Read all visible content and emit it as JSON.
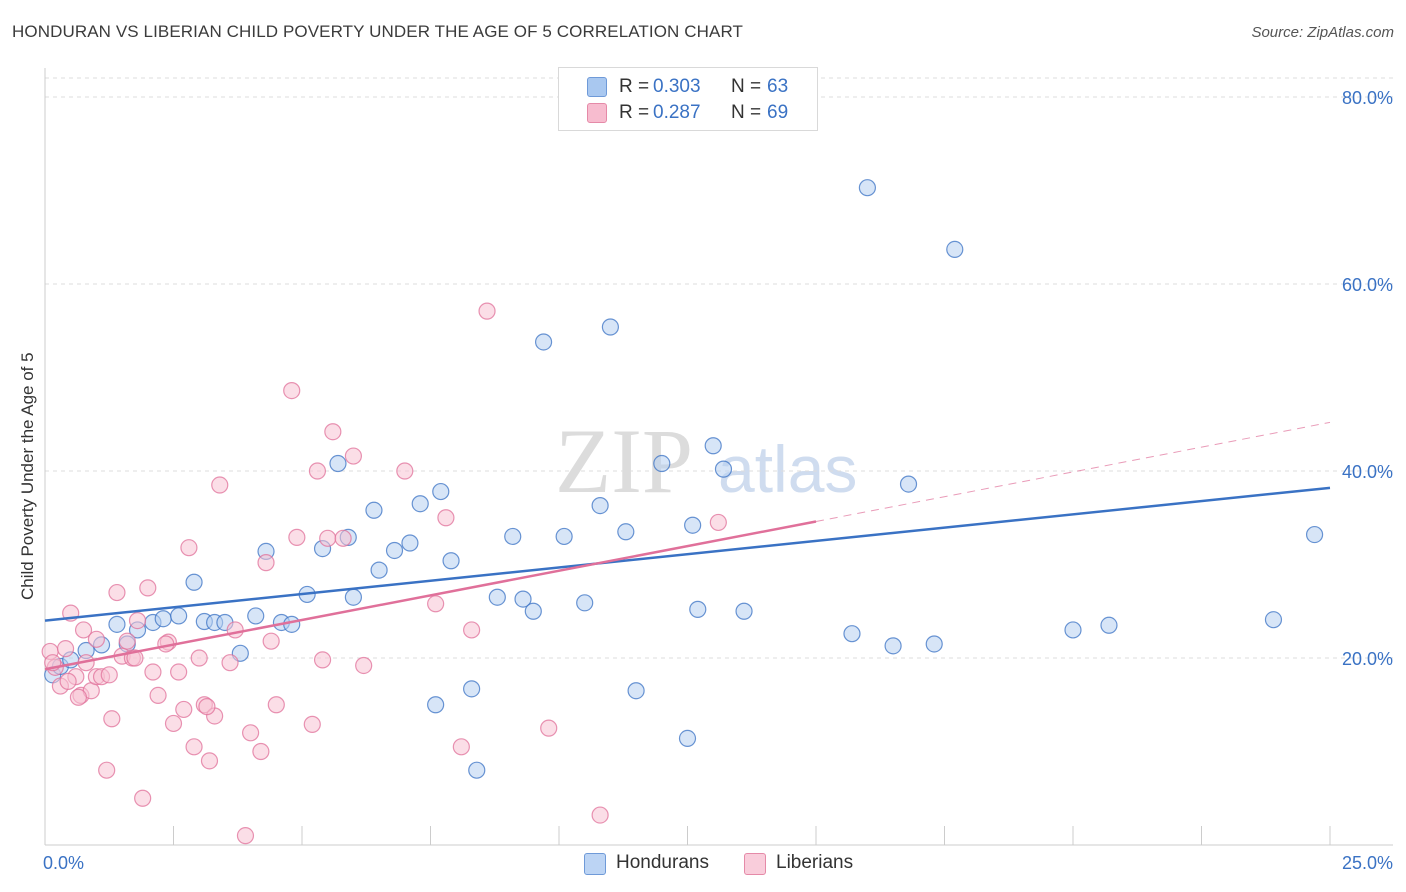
{
  "title": "HONDURAN VS LIBERIAN CHILD POVERTY UNDER THE AGE OF 5 CORRELATION CHART",
  "source": "Source: ZipAtlas.com",
  "watermark": {
    "zip": "ZIP",
    "atlas": "atlas"
  },
  "legend": {
    "rows": [
      {
        "r_label": "R =",
        "r_value": "0.303",
        "n_label": "N =",
        "n_value": "63",
        "color": "#a9c8f0",
        "border": "#6f9ad8"
      },
      {
        "r_label": "R =",
        "r_value": "0.287",
        "n_label": "N =",
        "n_value": "69",
        "color": "#f7bccf",
        "border": "#e58aa8"
      }
    ]
  },
  "bottom_legend": [
    {
      "label": "Hondurans",
      "color": "#bcd4f4",
      "border": "#6f9ad8"
    },
    {
      "label": "Liberians",
      "color": "#f9cddb",
      "border": "#e58aa8"
    }
  ],
  "chart_data": {
    "type": "scatter",
    "title": "HONDURAN VS LIBERIAN CHILD POVERTY UNDER THE AGE OF 5 CORRELATION CHART",
    "xlabel": "",
    "ylabel": "Child Poverty Under the Age of 5",
    "xlim": [
      0,
      25
    ],
    "ylim": [
      0,
      80
    ],
    "x_tick_labels": [
      "0.0%",
      "25.0%"
    ],
    "y_tick_labels": [
      "20.0%",
      "40.0%",
      "60.0%",
      "80.0%"
    ],
    "y_ticks": [
      20,
      40,
      60,
      80
    ],
    "x_minor_ticks": [
      2.5,
      5,
      7.5,
      10,
      12.5,
      15,
      17.5,
      20,
      22.5,
      25
    ],
    "grid": true,
    "series": [
      {
        "name": "Hondurans",
        "color": "#3a72c4",
        "fill": "#b7d0f1",
        "points": [
          [
            0.15,
            18.2
          ],
          [
            0.3,
            19.1
          ],
          [
            0.5,
            19.8
          ],
          [
            0.8,
            20.8
          ],
          [
            1.1,
            21.4
          ],
          [
            1.4,
            23.6
          ],
          [
            1.6,
            21.5
          ],
          [
            1.8,
            23.0
          ],
          [
            2.1,
            23.8
          ],
          [
            2.3,
            24.2
          ],
          [
            2.6,
            24.5
          ],
          [
            2.9,
            28.1
          ],
          [
            3.1,
            23.9
          ],
          [
            3.3,
            23.8
          ],
          [
            3.5,
            23.8
          ],
          [
            3.8,
            20.5
          ],
          [
            4.1,
            24.5
          ],
          [
            4.3,
            31.4
          ],
          [
            4.6,
            23.8
          ],
          [
            4.8,
            23.6
          ],
          [
            5.1,
            26.8
          ],
          [
            5.4,
            31.7
          ],
          [
            5.7,
            40.8
          ],
          [
            5.9,
            32.9
          ],
          [
            6.0,
            26.5
          ],
          [
            6.4,
            35.8
          ],
          [
            6.5,
            29.4
          ],
          [
            6.8,
            31.5
          ],
          [
            7.1,
            32.3
          ],
          [
            7.3,
            36.5
          ],
          [
            7.6,
            15.0
          ],
          [
            7.7,
            37.8
          ],
          [
            7.9,
            30.4
          ],
          [
            8.3,
            16.7
          ],
          [
            8.4,
            8.0
          ],
          [
            8.8,
            26.5
          ],
          [
            9.1,
            33.0
          ],
          [
            9.3,
            26.3
          ],
          [
            9.5,
            25.0
          ],
          [
            9.7,
            53.8
          ],
          [
            10.1,
            33.0
          ],
          [
            10.5,
            25.9
          ],
          [
            10.8,
            36.3
          ],
          [
            11.0,
            55.4
          ],
          [
            11.3,
            33.5
          ],
          [
            11.5,
            16.5
          ],
          [
            12.0,
            40.8
          ],
          [
            12.5,
            11.4
          ],
          [
            12.6,
            34.2
          ],
          [
            12.7,
            25.2
          ],
          [
            13.0,
            42.7
          ],
          [
            13.2,
            40.2
          ],
          [
            13.6,
            25.0
          ],
          [
            15.7,
            22.6
          ],
          [
            16.0,
            70.3
          ],
          [
            16.5,
            21.3
          ],
          [
            16.8,
            38.6
          ],
          [
            17.3,
            21.5
          ],
          [
            17.7,
            63.7
          ],
          [
            20.0,
            23.0
          ],
          [
            20.7,
            23.5
          ],
          [
            23.9,
            24.1
          ],
          [
            24.7,
            33.2
          ]
        ]
      },
      {
        "name": "Liberians",
        "color": "#e0709a",
        "fill": "#f7c3d4",
        "points": [
          [
            0.1,
            20.7
          ],
          [
            0.2,
            19.0
          ],
          [
            0.3,
            17.0
          ],
          [
            0.4,
            21.0
          ],
          [
            0.5,
            24.8
          ],
          [
            0.6,
            18.0
          ],
          [
            0.7,
            16.0
          ],
          [
            0.75,
            23.0
          ],
          [
            0.8,
            19.5
          ],
          [
            0.9,
            16.5
          ],
          [
            1.0,
            22.0
          ],
          [
            1.0,
            18.0
          ],
          [
            1.1,
            18.0
          ],
          [
            1.2,
            8.0
          ],
          [
            1.3,
            13.5
          ],
          [
            1.4,
            27.0
          ],
          [
            1.5,
            20.2
          ],
          [
            1.6,
            21.8
          ],
          [
            1.7,
            20.0
          ],
          [
            1.8,
            24.0
          ],
          [
            1.9,
            5.0
          ],
          [
            2.0,
            27.5
          ],
          [
            2.1,
            18.5
          ],
          [
            2.2,
            16.0
          ],
          [
            2.4,
            21.7
          ],
          [
            2.5,
            13.0
          ],
          [
            2.6,
            18.5
          ],
          [
            2.7,
            14.5
          ],
          [
            2.8,
            31.8
          ],
          [
            2.9,
            10.5
          ],
          [
            3.0,
            20.0
          ],
          [
            3.1,
            15.0
          ],
          [
            3.2,
            9.0
          ],
          [
            3.3,
            13.8
          ],
          [
            3.4,
            38.5
          ],
          [
            3.6,
            19.5
          ],
          [
            3.7,
            23.0
          ],
          [
            3.9,
            1.0
          ],
          [
            4.0,
            12.0
          ],
          [
            4.2,
            10.0
          ],
          [
            4.3,
            30.2
          ],
          [
            4.4,
            21.8
          ],
          [
            4.5,
            15.0
          ],
          [
            4.8,
            48.6
          ],
          [
            4.9,
            32.9
          ],
          [
            5.2,
            12.9
          ],
          [
            5.3,
            40.0
          ],
          [
            5.4,
            19.8
          ],
          [
            5.5,
            32.8
          ],
          [
            5.6,
            44.2
          ],
          [
            5.8,
            32.8
          ],
          [
            6.0,
            41.6
          ],
          [
            6.2,
            19.2
          ],
          [
            7.0,
            40.0
          ],
          [
            7.6,
            25.8
          ],
          [
            7.8,
            35.0
          ],
          [
            8.1,
            10.5
          ],
          [
            8.3,
            23.0
          ],
          [
            8.6,
            57.1
          ],
          [
            9.8,
            12.5
          ],
          [
            10.8,
            3.2
          ],
          [
            13.1,
            34.5
          ],
          [
            0.15,
            19.5
          ],
          [
            0.45,
            17.5
          ],
          [
            0.65,
            15.8
          ],
          [
            1.25,
            18.2
          ],
          [
            1.75,
            20.0
          ],
          [
            2.35,
            21.5
          ],
          [
            3.15,
            14.8
          ]
        ]
      }
    ],
    "trend_lines": [
      {
        "series": "Hondurans",
        "x": [
          0,
          25
        ],
        "y": [
          24.0,
          38.2
        ],
        "style": "solid"
      },
      {
        "series": "Liberians",
        "x": [
          0,
          15
        ],
        "y": [
          18.8,
          34.6
        ],
        "style": "solid"
      },
      {
        "series": "Liberians",
        "x": [
          15,
          25
        ],
        "y": [
          34.6,
          45.2
        ],
        "style": "dashed"
      }
    ]
  }
}
